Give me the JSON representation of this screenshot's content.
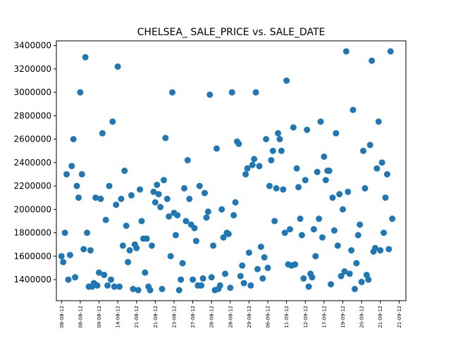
{
  "chart_data": {
    "type": "scatter",
    "title": "CHELSEA_ SALE_PRICE vs. SALE_DATE",
    "xlabel": "",
    "ylabel": "",
    "ylim": [
      1220000,
      3440000
    ],
    "y_ticks": [
      1400000,
      1600000,
      1800000,
      2000000,
      2200000,
      2400000,
      2600000,
      2800000,
      3000000,
      3200000,
      3400000
    ],
    "x_tick_labels": [
      "08-08-12",
      "08-08-12",
      "09-08-12",
      "14-08-12",
      "21-08-12",
      "21-08-12",
      "23-08-12",
      "27-08-12",
      "28-08-12",
      "28-08-12",
      "29-08-12",
      "06-09-12",
      "11-09-12",
      "12-09-12",
      "17-09-12",
      "19-09-12",
      "20-09-12",
      "21-09-12",
      "21-09-12"
    ],
    "x_range": [
      -3,
      202
    ],
    "grid": false,
    "marker_color": "#1f77b4",
    "series": [
      {
        "points": [
          [
            0,
            1600000
          ],
          [
            1,
            1550000
          ],
          [
            2,
            1800000
          ],
          [
            3,
            2300000
          ],
          [
            4,
            1400000
          ],
          [
            5,
            1610000
          ],
          [
            6,
            2370000
          ],
          [
            7,
            2600000
          ],
          [
            8,
            1420000
          ],
          [
            9,
            2200000
          ],
          [
            10,
            2100000
          ],
          [
            11,
            3000000
          ],
          [
            12,
            2300000
          ],
          [
            13,
            1660000
          ],
          [
            14,
            3300000
          ],
          [
            15,
            1800000
          ],
          [
            16,
            1340000
          ],
          [
            17,
            1650000
          ],
          [
            18,
            1340000
          ],
          [
            19,
            1370000
          ],
          [
            20,
            2100000
          ],
          [
            21,
            1350000
          ],
          [
            22,
            1460000
          ],
          [
            23,
            2090000
          ],
          [
            24,
            2650000
          ],
          [
            25,
            1440000
          ],
          [
            26,
            1910000
          ],
          [
            27,
            1350000
          ],
          [
            28,
            2200000
          ],
          [
            29,
            1400000
          ],
          [
            30,
            2750000
          ],
          [
            31,
            1340000
          ],
          [
            32,
            2040000
          ],
          [
            33,
            3220000
          ],
          [
            34,
            1340000
          ],
          [
            35,
            2090000
          ],
          [
            36,
            1690000
          ],
          [
            37,
            2330000
          ],
          [
            38,
            1860000
          ],
          [
            39,
            1550000
          ],
          [
            40,
            1650000
          ],
          [
            41,
            2120000
          ],
          [
            42,
            1320000
          ],
          [
            43,
            1700000
          ],
          [
            44,
            1670000
          ],
          [
            45,
            1310000
          ],
          [
            46,
            2170000
          ],
          [
            47,
            1900000
          ],
          [
            48,
            1750000
          ],
          [
            49,
            1460000
          ],
          [
            50,
            1750000
          ],
          [
            51,
            1340000
          ],
          [
            52,
            1310000
          ],
          [
            53,
            1690000
          ],
          [
            54,
            2150000
          ],
          [
            55,
            2060000
          ],
          [
            56,
            2210000
          ],
          [
            57,
            2130000
          ],
          [
            58,
            2020000
          ],
          [
            59,
            1320000
          ],
          [
            60,
            2250000
          ],
          [
            61,
            2610000
          ],
          [
            62,
            2090000
          ],
          [
            63,
            1940000
          ],
          [
            64,
            1600000
          ],
          [
            65,
            3000000
          ],
          [
            66,
            1970000
          ],
          [
            67,
            1780000
          ],
          [
            68,
            1950000
          ],
          [
            69,
            1310000
          ],
          [
            70,
            1400000
          ],
          [
            71,
            1540000
          ],
          [
            72,
            2180000
          ],
          [
            73,
            1900000
          ],
          [
            74,
            2420000
          ],
          [
            75,
            2090000
          ],
          [
            76,
            1870000
          ],
          [
            77,
            1400000
          ],
          [
            78,
            1840000
          ],
          [
            79,
            1730000
          ],
          [
            80,
            1350000
          ],
          [
            81,
            2200000
          ],
          [
            82,
            1350000
          ],
          [
            83,
            1410000
          ],
          [
            84,
            2140000
          ],
          [
            85,
            1930000
          ],
          [
            86,
            1980000
          ],
          [
            87,
            2980000
          ],
          [
            88,
            1420000
          ],
          [
            89,
            1690000
          ],
          [
            90,
            1310000
          ],
          [
            91,
            2520000
          ],
          [
            92,
            1320000
          ],
          [
            93,
            1350000
          ],
          [
            94,
            2000000
          ],
          [
            95,
            1760000
          ],
          [
            96,
            1450000
          ],
          [
            97,
            1800000
          ],
          [
            98,
            1790000
          ],
          [
            99,
            1330000
          ],
          [
            100,
            3000000
          ],
          [
            101,
            1950000
          ],
          [
            102,
            2060000
          ],
          [
            103,
            2580000
          ],
          [
            104,
            2560000
          ],
          [
            105,
            1430000
          ],
          [
            106,
            1520000
          ],
          [
            107,
            1370000
          ],
          [
            108,
            2300000
          ],
          [
            109,
            2350000
          ],
          [
            110,
            1630000
          ],
          [
            111,
            1350000
          ],
          [
            112,
            2380000
          ],
          [
            113,
            2430000
          ],
          [
            114,
            3000000
          ],
          [
            115,
            1490000
          ],
          [
            116,
            2370000
          ],
          [
            117,
            1680000
          ],
          [
            118,
            1410000
          ],
          [
            119,
            1590000
          ],
          [
            120,
            2600000
          ],
          [
            121,
            1500000
          ],
          [
            122,
            2200000
          ],
          [
            123,
            2420000
          ],
          [
            124,
            2500000
          ],
          [
            125,
            1900000
          ],
          [
            126,
            2180000
          ],
          [
            127,
            2650000
          ],
          [
            128,
            2600000
          ],
          [
            129,
            2500000
          ],
          [
            130,
            2170000
          ],
          [
            131,
            1800000
          ],
          [
            132,
            3100000
          ],
          [
            133,
            1530000
          ],
          [
            134,
            1830000
          ],
          [
            135,
            1520000
          ],
          [
            136,
            2700000
          ],
          [
            137,
            1530000
          ],
          [
            138,
            2350000
          ],
          [
            139,
            2190000
          ],
          [
            140,
            1920000
          ],
          [
            141,
            1780000
          ],
          [
            142,
            1410000
          ],
          [
            143,
            2250000
          ],
          [
            144,
            2680000
          ],
          [
            145,
            1340000
          ],
          [
            146,
            1450000
          ],
          [
            147,
            1420000
          ],
          [
            148,
            1830000
          ],
          [
            149,
            1600000
          ],
          [
            150,
            2320000
          ],
          [
            151,
            1920000
          ],
          [
            152,
            2750000
          ],
          [
            153,
            1760000
          ],
          [
            154,
            2450000
          ],
          [
            155,
            2250000
          ],
          [
            156,
            2330000
          ],
          [
            157,
            2330000
          ],
          [
            158,
            1360000
          ],
          [
            159,
            2100000
          ],
          [
            160,
            1820000
          ],
          [
            161,
            2650000
          ],
          [
            162,
            1690000
          ],
          [
            163,
            2130000
          ],
          [
            164,
            1430000
          ],
          [
            165,
            2000000
          ],
          [
            166,
            1470000
          ],
          [
            167,
            3350000
          ],
          [
            168,
            2150000
          ],
          [
            169,
            1450000
          ],
          [
            170,
            1650000
          ],
          [
            171,
            2850000
          ],
          [
            172,
            1320000
          ],
          [
            173,
            1540000
          ],
          [
            174,
            1780000
          ],
          [
            175,
            1870000
          ],
          [
            176,
            1380000
          ],
          [
            177,
            2500000
          ],
          [
            178,
            2180000
          ],
          [
            179,
            1440000
          ],
          [
            180,
            1400000
          ],
          [
            181,
            2550000
          ],
          [
            182,
            3270000
          ],
          [
            183,
            1640000
          ],
          [
            184,
            1670000
          ],
          [
            185,
            2350000
          ],
          [
            186,
            2750000
          ],
          [
            187,
            1650000
          ],
          [
            188,
            2400000
          ],
          [
            189,
            1800000
          ],
          [
            190,
            2100000
          ],
          [
            191,
            2300000
          ],
          [
            192,
            1660000
          ],
          [
            193,
            3350000
          ],
          [
            194,
            1920000
          ]
        ]
      }
    ]
  }
}
